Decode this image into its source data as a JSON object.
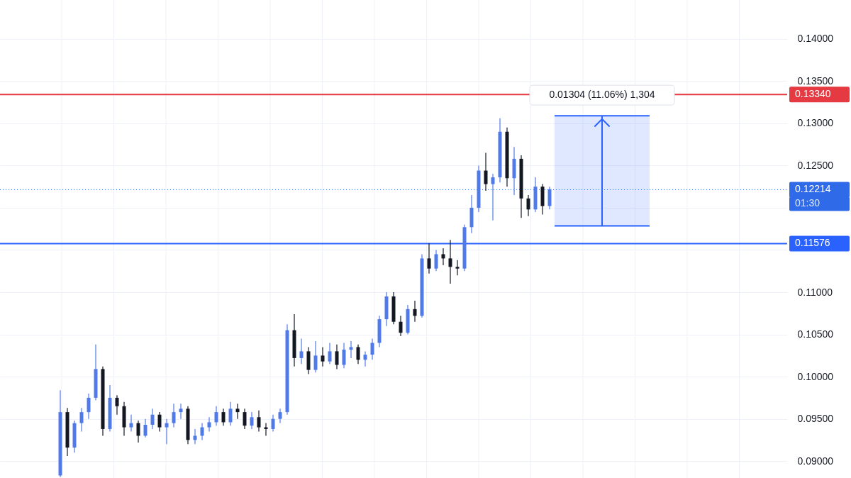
{
  "chart_data": {
    "type": "candlestick",
    "categories": [
      null,
      null,
      null,
      null,
      null,
      null,
      null,
      null,
      null,
      null,
      null,
      null,
      null,
      null,
      null,
      null,
      null,
      null,
      null,
      null,
      null,
      null,
      null,
      null,
      null,
      null,
      null,
      null,
      null,
      null,
      null,
      null,
      null,
      null,
      null,
      null,
      null,
      null,
      null,
      null,
      null,
      null,
      null,
      null,
      null,
      null,
      null,
      null,
      null,
      null,
      null,
      null,
      null,
      null,
      null,
      null,
      null,
      null,
      null,
      null,
      null,
      null,
      null,
      null,
      null,
      null,
      null,
      null,
      null,
      null,
      null,
      null,
      null,
      null,
      null,
      null,
      null,
      null,
      null,
      null,
      null,
      null,
      null,
      null,
      null,
      null,
      null,
      null,
      null,
      null,
      null,
      null,
      null,
      null,
      null,
      null,
      null,
      null,
      null,
      null,
      null,
      null,
      null,
      null,
      null,
      null,
      null,
      null,
      null,
      null,
      null
    ],
    "ohlc": [
      null,
      null,
      null,
      null,
      null,
      null,
      null,
      null,
      [
        0.0883,
        0.0984,
        0.0881,
        0.0958
      ],
      [
        0.0958,
        0.0963,
        0.0906,
        0.0916
      ],
      [
        0.0916,
        0.0948,
        0.091,
        0.0945
      ],
      [
        0.0945,
        0.0963,
        0.0935,
        0.0958
      ],
      [
        0.0958,
        0.098,
        0.095,
        0.0975
      ],
      [
        0.0975,
        0.1038,
        0.0972,
        0.1009
      ],
      [
        0.1009,
        0.1012,
        0.093,
        0.0938
      ],
      [
        0.0938,
        0.099,
        0.0935,
        0.0975
      ],
      [
        0.0975,
        0.0978,
        0.0955,
        0.0965
      ],
      [
        0.0965,
        0.097,
        0.093,
        0.094
      ],
      [
        0.094,
        0.0955,
        0.0935,
        0.0945
      ],
      [
        0.0945,
        0.0948,
        0.0922,
        0.093
      ],
      [
        0.093,
        0.095,
        0.0928,
        0.0943
      ],
      [
        0.0943,
        0.0962,
        0.0938,
        0.0955
      ],
      [
        0.0955,
        0.0958,
        0.0935,
        0.094
      ],
      [
        0.094,
        0.095,
        0.092,
        0.0945
      ],
      [
        0.0945,
        0.0968,
        0.094,
        0.0958
      ],
      [
        0.0958,
        0.0968,
        0.095,
        0.0962
      ],
      [
        0.0962,
        0.0965,
        0.092,
        0.0925
      ],
      [
        0.0925,
        0.0938,
        0.092,
        0.093
      ],
      [
        0.093,
        0.0945,
        0.0925,
        0.094
      ],
      [
        0.094,
        0.0952,
        0.0935,
        0.0946
      ],
      [
        0.0946,
        0.0965,
        0.0942,
        0.0958
      ],
      [
        0.0958,
        0.0962,
        0.0942,
        0.0946
      ],
      [
        0.0946,
        0.097,
        0.0942,
        0.0962
      ],
      [
        0.0962,
        0.0968,
        0.095,
        0.0958
      ],
      [
        0.0958,
        0.0962,
        0.0938,
        0.0942
      ],
      [
        0.0942,
        0.0958,
        0.0938,
        0.0952
      ],
      [
        0.0952,
        0.096,
        0.0935,
        0.094
      ],
      [
        0.094,
        0.0945,
        0.093,
        0.0938
      ],
      [
        0.0938,
        0.0955,
        0.0935,
        0.095
      ],
      [
        0.095,
        0.0962,
        0.0945,
        0.0958
      ],
      [
        0.0958,
        0.1062,
        0.0955,
        0.1055
      ],
      [
        0.1055,
        0.1074,
        0.1012,
        0.1022
      ],
      [
        0.1022,
        0.1045,
        0.1015,
        0.103
      ],
      [
        0.103,
        0.1035,
        0.1003,
        0.1008
      ],
      [
        0.1008,
        0.1042,
        0.1005,
        0.1025
      ],
      [
        0.1025,
        0.1035,
        0.1012,
        0.1018
      ],
      [
        0.1018,
        0.104,
        0.1015,
        0.103
      ],
      [
        0.103,
        0.1038,
        0.1009,
        0.1014
      ],
      [
        0.1014,
        0.104,
        0.101,
        0.1032
      ],
      [
        0.1032,
        0.1042,
        0.1022,
        0.1035
      ],
      [
        0.1035,
        0.1038,
        0.1015,
        0.102
      ],
      [
        0.102,
        0.103,
        0.1012,
        0.1026
      ],
      [
        0.1026,
        0.1045,
        0.102,
        0.104
      ],
      [
        0.104,
        0.1072,
        0.1035,
        0.1068
      ],
      [
        0.1068,
        0.11,
        0.106,
        0.1095
      ],
      [
        0.1095,
        0.11,
        0.1062,
        0.1065
      ],
      [
        0.1065,
        0.1072,
        0.1048,
        0.1052
      ],
      [
        0.1052,
        0.1085,
        0.105,
        0.108
      ],
      [
        0.108,
        0.109,
        0.1065,
        0.1072
      ],
      [
        0.1072,
        0.1145,
        0.107,
        0.114
      ],
      [
        0.114,
        0.1158,
        0.1122,
        0.1128
      ],
      [
        0.1128,
        0.115,
        0.1125,
        0.1145
      ],
      [
        0.1145,
        0.1152,
        0.1132,
        0.114
      ],
      [
        0.114,
        0.1162,
        0.111,
        0.113
      ],
      [
        0.113,
        0.1138,
        0.112,
        0.1128
      ],
      [
        0.1128,
        0.118,
        0.1125,
        0.1177
      ],
      [
        0.1177,
        0.1215,
        0.117,
        0.12
      ],
      [
        0.12,
        0.125,
        0.1195,
        0.1244
      ],
      [
        0.1244,
        0.1265,
        0.122,
        0.1228
      ],
      [
        0.1228,
        0.124,
        0.1185,
        0.1236
      ],
      [
        0.1236,
        0.1306,
        0.123,
        0.129
      ],
      [
        0.129,
        0.1295,
        0.1225,
        0.1235
      ],
      [
        0.1235,
        0.1272,
        0.1215,
        0.1258
      ],
      [
        0.1258,
        0.1262,
        0.1188,
        0.1211
      ],
      [
        0.1211,
        0.1215,
        0.119,
        0.1198
      ],
      [
        0.1198,
        0.1236,
        0.1195,
        0.1225
      ],
      [
        0.1225,
        0.1228,
        0.1192,
        0.1202
      ],
      [
        0.1202,
        0.1225,
        0.1198,
        0.1222
      ],
      null,
      null,
      null,
      null,
      null,
      null,
      null,
      null,
      null,
      null,
      null,
      null,
      null,
      null,
      null,
      null,
      null,
      null,
      null,
      null,
      null,
      null,
      null,
      null,
      null,
      null,
      null,
      null,
      null,
      null,
      null,
      null,
      null
    ],
    "colors": [
      null,
      null,
      null,
      null,
      null,
      null,
      null,
      null,
      "#4f7ae8",
      "#131722",
      "#4f7ae8",
      "#4f7ae8",
      "#4f7ae8",
      "#4f7ae8",
      "#131722",
      "#4f7ae8",
      "#131722",
      "#131722",
      "#4f7ae8",
      "#131722",
      "#4f7ae8",
      "#4f7ae8",
      "#131722",
      "#4f7ae8",
      "#4f7ae8",
      "#4f7ae8",
      "#131722",
      "#4f7ae8",
      "#4f7ae8",
      "#4f7ae8",
      "#4f7ae8",
      "#131722",
      "#4f7ae8",
      "#131722",
      "#131722",
      "#4f7ae8",
      "#131722",
      "#131722",
      "#4f7ae8",
      "#4f7ae8",
      "#4f7ae8",
      "#131722",
      "#4f7ae8",
      "#131722",
      "#4f7ae8",
      "#131722",
      "#4f7ae8",
      "#131722",
      "#4f7ae8",
      "#4f7ae8",
      "#131722",
      "#4f7ae8",
      "#4f7ae8",
      "#4f7ae8",
      "#4f7ae8",
      "#131722",
      "#131722",
      "#4f7ae8",
      "#131722",
      "#4f7ae8",
      "#131722",
      "#4f7ae8",
      "#131722",
      "#131722",
      "#131722",
      "#4f7ae8",
      "#4f7ae8",
      "#4f7ae8",
      "#131722",
      "#4f7ae8",
      "#4f7ae8",
      "#131722",
      "#4f7ae8",
      "#131722",
      "#131722",
      "#4f7ae8",
      "#131722",
      "#4f7ae8",
      null,
      null,
      null,
      null,
      null,
      null,
      null,
      null,
      null,
      null,
      null,
      null,
      null,
      null,
      null,
      null,
      null,
      null,
      null,
      null,
      null,
      null,
      null,
      null,
      null,
      null,
      null,
      null,
      null,
      null,
      null,
      null,
      null
    ],
    "ylim": [
      0.088,
      0.1446
    ],
    "yticks": [
      {
        "value": 0.09,
        "label": "0.09000"
      },
      {
        "value": 0.095,
        "label": "0.09500"
      },
      {
        "value": 0.1,
        "label": "0.10000"
      },
      {
        "value": 0.105,
        "label": "0.10500"
      },
      {
        "value": 0.11,
        "label": "0.11000"
      },
      {
        "value": 0.115,
        "label": null
      },
      {
        "value": 0.12,
        "label": null
      },
      {
        "value": 0.125,
        "label": "0.12500"
      },
      {
        "value": 0.13,
        "label": "0.13000"
      },
      {
        "value": 0.135,
        "label": "0.13500"
      },
      {
        "value": 0.14,
        "label": "0.14000"
      }
    ],
    "ref_lines": [
      {
        "axis": "y",
        "value": 0.1334,
        "label": "0.13340",
        "color": "#e53a42",
        "line_style": "solid"
      },
      {
        "axis": "y",
        "value": 0.11576,
        "label": "0.11576",
        "color": "#2962ff",
        "line_style": "solid"
      },
      {
        "axis": "y",
        "value": 0.12214,
        "label": "0.12214",
        "color": "#2f6ae8",
        "line_style": "dotted"
      }
    ],
    "bands": [
      {
        "axis": "y",
        "from": 0.11786,
        "to": 0.1309,
        "label": "0.01304 (11.06%) 1,304",
        "color": "#2962ff"
      }
    ],
    "annotations": [
      "01:30"
    ],
    "grid": true
  }
}
